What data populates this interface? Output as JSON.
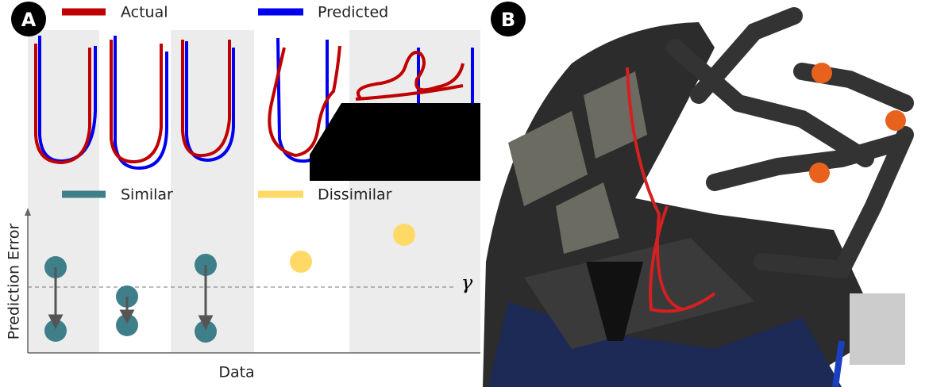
{
  "panel_a": {
    "label": "A",
    "legend_top": [
      "Actual",
      "Predicted"
    ],
    "legend_bottom": [
      "Similar",
      "Dissimilar"
    ],
    "y_axis_label": "Prediction Error",
    "x_axis_label": "Data",
    "threshold_label": "γ"
  },
  "panel_b": {
    "label": "B"
  }
}
